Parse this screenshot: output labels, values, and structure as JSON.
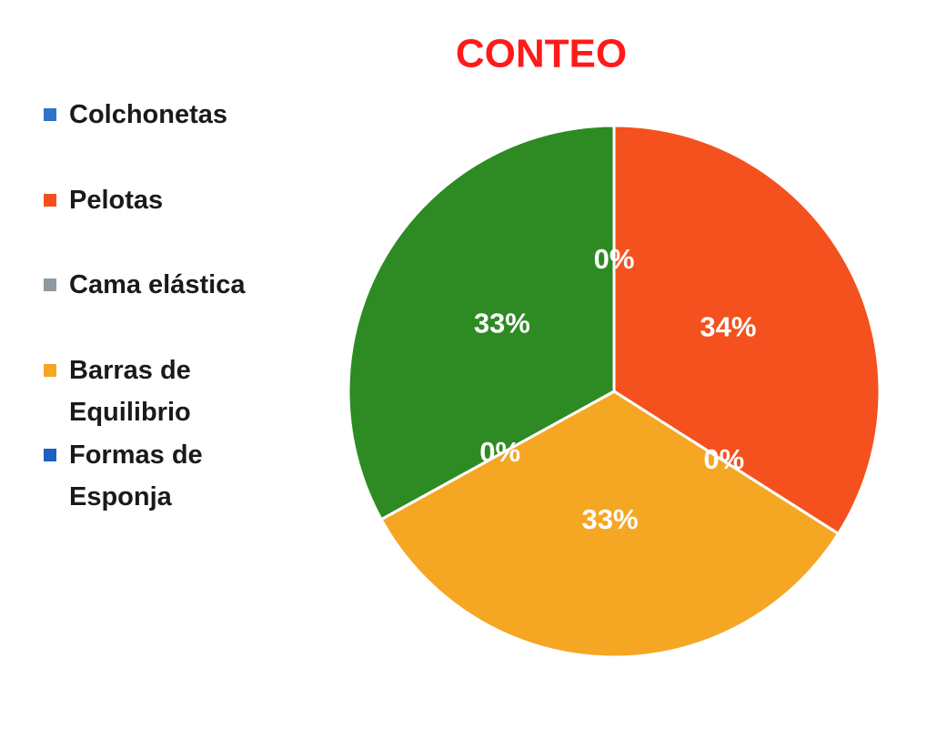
{
  "chart_data": {
    "type": "pie",
    "title": "CONTEO",
    "categories": [
      "Colchonetas",
      "Pelotas",
      "Cama elástica",
      "Barras de Equilibrio",
      "Formas de Esponja",
      null
    ],
    "values": [
      0,
      34,
      0,
      33,
      0,
      33
    ],
    "value_labels": [
      "0%",
      "34%",
      "0%",
      "33%",
      "0%",
      "33%"
    ],
    "colors": [
      "#2e75c6",
      "#f4511e",
      "#8f9aa0",
      "#f5a623",
      "#1f5fbf",
      "#2e8b24"
    ],
    "legend": "left"
  }
}
